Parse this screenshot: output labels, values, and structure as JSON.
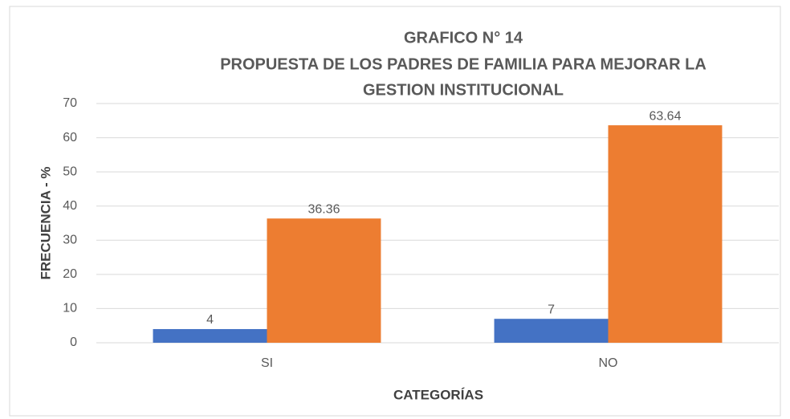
{
  "chart_data": {
    "type": "bar",
    "title": [
      "GRAFICO N° 14",
      "PROPUESTA DE LOS PADRES DE FAMILIA PARA MEJORAR LA",
      "GESTION INSTITUCIONAL"
    ],
    "x_label": "CATEGORÍAS",
    "y_label": "FRECUENCIA - %",
    "categories": [
      "SI",
      "NO"
    ],
    "series": [
      {
        "color": "#4472c4",
        "values": [
          4,
          7
        ]
      },
      {
        "color": "#ed7d31",
        "values": [
          36.36,
          63.64
        ]
      }
    ],
    "ylim": [
      0,
      70
    ],
    "yticks": [
      0,
      10,
      20,
      30,
      40,
      50,
      60,
      70
    ],
    "grid": true
  }
}
